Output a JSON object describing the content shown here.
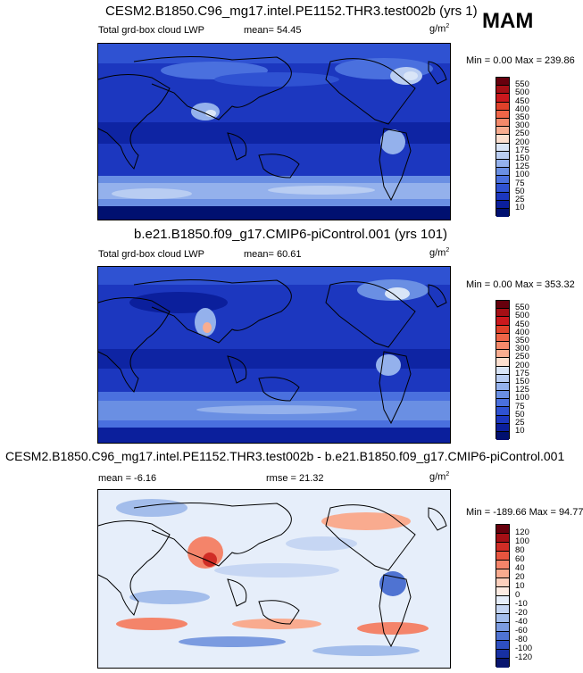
{
  "season": "MAM",
  "panels": [
    {
      "title": "CESM2.B1850.C96_mg17.intel.PE1152.THR3.test002b (yrs 1)",
      "left_label": "Total grd-box cloud LWP",
      "mean_text": "mean=  54.45",
      "rmse_text": "",
      "units": "g/m",
      "units_sup": "2",
      "minmax_text": "Min =   0.00 Max = 239.86",
      "colorbar_ticks": [
        "550",
        "500",
        "450",
        "400",
        "350",
        "300",
        "250",
        "200",
        "175",
        "150",
        "125",
        "100",
        "75",
        "50",
        "25",
        "10"
      ],
      "colorbar_colors": [
        "#67000d",
        "#a50f15",
        "#cb181d",
        "#e0412a",
        "#ef6548",
        "#f4896a",
        "#f9ad90",
        "#fde0d0",
        "#d9e5f7",
        "#b9cdf2",
        "#94b1ec",
        "#6a8fe3",
        "#4a70de",
        "#2f52d2",
        "#1c37bf",
        "#0b1f9c",
        "#001070"
      ]
    },
    {
      "title": "b.e21.B1850.f09_g17.CMIP6-piControl.001 (yrs 101)",
      "left_label": "Total grd-box cloud LWP",
      "mean_text": "mean=  60.61",
      "rmse_text": "",
      "units": "g/m",
      "units_sup": "2",
      "minmax_text": "Min =   0.00 Max = 353.32",
      "colorbar_ticks": [
        "550",
        "500",
        "450",
        "400",
        "350",
        "300",
        "250",
        "200",
        "175",
        "150",
        "125",
        "100",
        "75",
        "50",
        "25",
        "10"
      ],
      "colorbar_colors": [
        "#67000d",
        "#a50f15",
        "#cb181d",
        "#e0412a",
        "#ef6548",
        "#f4896a",
        "#f9ad90",
        "#fde0d0",
        "#d9e5f7",
        "#b9cdf2",
        "#94b1ec",
        "#6a8fe3",
        "#4a70de",
        "#2f52d2",
        "#1c37bf",
        "#0b1f9c",
        "#001070"
      ]
    },
    {
      "title": "CESM2.B1850.C96_mg17.intel.PE1152.THR3.test002b - b.e21.B1850.f09_g17.CMIP6-piControl.001",
      "left_label": "",
      "mean_text": "mean =  -6.16",
      "rmse_text": "rmse =  21.32",
      "units": "g/m",
      "units_sup": "2",
      "minmax_text": "Min = -189.66 Max =  94.77",
      "colorbar_ticks": [
        "120",
        "100",
        "80",
        "60",
        "40",
        "20",
        "10",
        "0",
        "-10",
        "-20",
        "-40",
        "-60",
        "-80",
        "-100",
        "-120"
      ],
      "colorbar_colors": [
        "#67000d",
        "#a50f15",
        "#d02d26",
        "#e8553f",
        "#f4846a",
        "#f9ab8f",
        "#fdd0bd",
        "#fdece3",
        "#e6eefa",
        "#c6d6f3",
        "#a3bdeb",
        "#7b9be0",
        "#4f73d2",
        "#2e4fc0",
        "#1730a3",
        "#08156e"
      ]
    }
  ]
}
